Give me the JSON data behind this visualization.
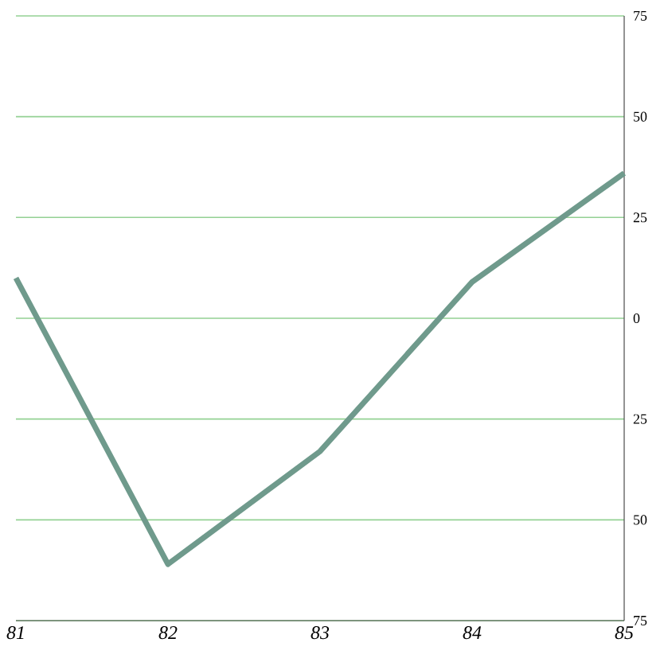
{
  "chart_data": {
    "type": "line",
    "x": [
      81,
      82,
      83,
      84,
      85
    ],
    "series": [
      {
        "color": "#6f9a8c",
        "values": [
          10,
          -61,
          -33,
          9,
          36
        ]
      }
    ],
    "xlim": [
      81,
      85
    ],
    "xticks": [
      81,
      82,
      83,
      84,
      85
    ],
    "ylim": [
      -75,
      75
    ],
    "yticks": [
      75,
      50,
      25,
      0,
      {
        "value": -25,
        "label": "25"
      },
      {
        "value": -50,
        "label": "50"
      },
      {
        "value": -75,
        "label": "75"
      }
    ],
    "grid": "y",
    "marker": "none",
    "line_style": "solid"
  }
}
